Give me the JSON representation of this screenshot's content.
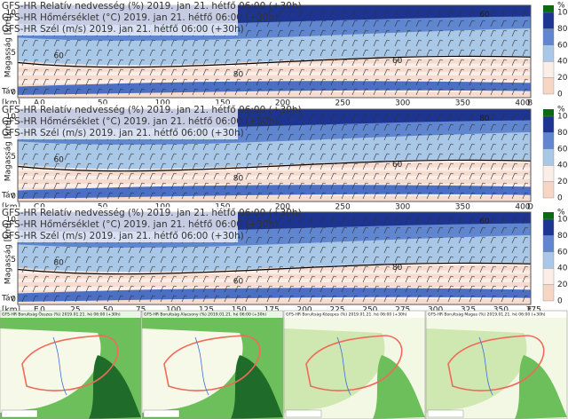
{
  "panels": [
    {
      "lines": [
        "GFS-HR Relatív nedvesség (%) 2019. jan 21. hétfő 06:00 (+30h)",
        "GFS-HR Hőmérséklet (°C) 2019. jan 21. hétfő 06:00 (+30h)",
        "GFS-HR Szél (m/s) 2019. jan 21. hétfő 06:00 (+30h)"
      ],
      "start": "A",
      "end": "B",
      "xticks": [
        "0",
        "50",
        "100",
        "150",
        "200",
        "250",
        "300",
        "350",
        "400"
      ],
      "contours": [
        "60",
        "80",
        "60",
        "60"
      ]
    },
    {
      "lines": [
        "GFS-HR Relatív nedvesség (%) 2019. jan 21. hétfő 06:00 (+30h)",
        "GFS-HR Hőmérséklet (°C) 2019. jan 21. hétfő 06:00 (+30h)",
        "GFS-HR Szél (m/s) 2019. jan 21. hétfő 06:00 (+30h)"
      ],
      "start": "C",
      "end": "D",
      "xticks": [
        "0",
        "50",
        "100",
        "150",
        "200",
        "250",
        "300",
        "350",
        "400"
      ],
      "contours": [
        "60",
        "80",
        "60",
        "80"
      ]
    },
    {
      "lines": [
        "GFS-HR Relatív nedvesség (%) 2019. jan 21. hétfő 06:00 (+30h)",
        "GFS-HR Hőmérséklet (°C) 2019. jan 21. hétfő 06:00 (+30h)",
        "GFS-HR Szél (m/s) 2019. jan 21. hétfő 06:00 (+30h)"
      ],
      "start": "E",
      "end": "F",
      "xticks": [
        "0",
        "25",
        "50",
        "75",
        "100",
        "125",
        "150",
        "175",
        "200",
        "225",
        "250",
        "275",
        "300",
        "325",
        "350",
        "375"
      ],
      "contours": [
        "80",
        "60",
        "80",
        "60"
      ]
    }
  ],
  "axis": {
    "y_label": "Magasság [km]",
    "yticks": [
      "0",
      "5",
      "10"
    ],
    "x_label": "Táv",
    "x_unit": "[km]"
  },
  "colorbar": {
    "unit": "%",
    "ticks": [
      "0",
      "20",
      "40",
      "60",
      "80",
      "100"
    ]
  },
  "maps": [
    {
      "title": "GFS-HR Borultság Összes (%) 2019.01.21. hé 06:00 (+30h)"
    },
    {
      "title": "GFS-HR Borultság Alacsony (%) 2019.01.21. hé 06:00 (+30h)"
    },
    {
      "title": "GFS-HR Borultság Közepes (%) 2019.01.21. hé 06:00 (+30h)"
    },
    {
      "title": "GFS-HR Borultság Magas (%) 2019.01.21. hé 06:00 (+30h)"
    }
  ]
}
